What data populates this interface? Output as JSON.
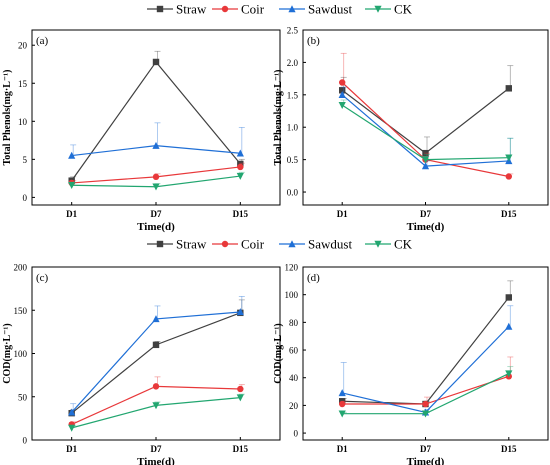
{
  "legends": [
    [
      {
        "name": "Straw",
        "color": "#404040",
        "marker": "square"
      },
      {
        "name": "Coir",
        "color": "#e8383a",
        "marker": "circle"
      },
      {
        "name": "Sawdust",
        "color": "#1f6fd6",
        "marker": "triangle-up"
      },
      {
        "name": "CK",
        "color": "#22a670",
        "marker": "triangle-down"
      }
    ],
    [
      {
        "name": "Straw",
        "color": "#404040",
        "marker": "square"
      },
      {
        "name": "Coir",
        "color": "#e8383a",
        "marker": "circle"
      },
      {
        "name": "Sawdust",
        "color": "#1f6fd6",
        "marker": "triangle-up"
      },
      {
        "name": "CK",
        "color": "#22a670",
        "marker": "triangle-down"
      }
    ]
  ],
  "chart_data": [
    {
      "type": "line",
      "panel_label": "(a)",
      "categories": [
        "D1",
        "D7",
        "D15"
      ],
      "xlabel": "Time(d)",
      "ylabel": "Total Phenols(mg·L⁻¹)",
      "ylim": [
        -1,
        22
      ],
      "yticks": [
        0,
        5,
        10,
        15,
        20
      ],
      "grid": false,
      "legend": "above",
      "series": [
        {
          "name": "Straw",
          "color": "#404040",
          "marker": "square",
          "values": [
            2.2,
            17.8,
            4.4
          ],
          "errors": [
            0.5,
            1.4,
            0.6
          ]
        },
        {
          "name": "Coir",
          "color": "#e8383a",
          "marker": "circle",
          "values": [
            1.9,
            2.7,
            4.0
          ],
          "errors": [
            0.3,
            0.4,
            0.5
          ]
        },
        {
          "name": "Sawdust",
          "color": "#1f6fd6",
          "marker": "triangle-up",
          "values": [
            5.5,
            6.8,
            5.8
          ],
          "errors": [
            1.4,
            3.0,
            3.4
          ]
        },
        {
          "name": "CK",
          "color": "#22a670",
          "marker": "triangle-down",
          "values": [
            1.6,
            1.4,
            2.8
          ],
          "errors": [
            0.4,
            0.4,
            0.5
          ]
        }
      ]
    },
    {
      "type": "line",
      "panel_label": "(b)",
      "categories": [
        "D1",
        "D7",
        "D15"
      ],
      "xlabel": "Time(d)",
      "ylabel": "Total Phenols(mg·L⁻¹)",
      "ylim": [
        -0.2,
        2.5
      ],
      "yticks": [
        0.0,
        0.5,
        1.0,
        1.5,
        2.0,
        2.5
      ],
      "grid": false,
      "legend": "none",
      "series": [
        {
          "name": "Straw",
          "color": "#404040",
          "marker": "square",
          "values": [
            1.57,
            0.6,
            1.6
          ],
          "errors": [
            0.2,
            0.25,
            0.35
          ]
        },
        {
          "name": "Coir",
          "color": "#e8383a",
          "marker": "circle",
          "values": [
            1.69,
            0.5,
            0.24
          ],
          "errors": [
            0.45,
            0.1,
            0.04
          ]
        },
        {
          "name": "Sawdust",
          "color": "#1f6fd6",
          "marker": "triangle-up",
          "values": [
            1.5,
            0.4,
            0.48
          ],
          "errors": [
            0.12,
            0.08,
            0.35
          ]
        },
        {
          "name": "CK",
          "color": "#22a670",
          "marker": "triangle-down",
          "values": [
            1.34,
            0.5,
            0.53
          ],
          "errors": [
            0.08,
            0.08,
            0.3
          ]
        }
      ]
    },
    {
      "type": "line",
      "panel_label": "(c)",
      "categories": [
        "D1",
        "D7",
        "D15"
      ],
      "xlabel": "Time(d)",
      "ylabel": "COD(mg·L⁻¹)",
      "ylim": [
        0,
        200
      ],
      "yticks": [
        0,
        50,
        100,
        150,
        200
      ],
      "grid": false,
      "legend": "above",
      "series": [
        {
          "name": "Straw",
          "color": "#404040",
          "marker": "square",
          "values": [
            31,
            110,
            147
          ],
          "errors": [
            4,
            4,
            15
          ]
        },
        {
          "name": "Coir",
          "color": "#e8383a",
          "marker": "circle",
          "values": [
            18,
            62,
            59
          ],
          "errors": [
            3,
            11,
            5
          ]
        },
        {
          "name": "Sawdust",
          "color": "#1f6fd6",
          "marker": "triangle-up",
          "values": [
            32,
            140,
            148
          ],
          "errors": [
            10,
            15,
            18
          ]
        },
        {
          "name": "CK",
          "color": "#22a670",
          "marker": "triangle-down",
          "values": [
            14,
            40,
            49
          ],
          "errors": [
            3,
            4,
            4
          ]
        }
      ]
    },
    {
      "type": "line",
      "panel_label": "(d)",
      "categories": [
        "D1",
        "D7",
        "D15"
      ],
      "xlabel": "Time(d)",
      "ylabel": "COD(mg·L⁻¹)",
      "ylim": [
        -5,
        120
      ],
      "yticks": [
        0,
        20,
        40,
        60,
        80,
        100,
        120
      ],
      "grid": false,
      "legend": "none",
      "series": [
        {
          "name": "Straw",
          "color": "#404040",
          "marker": "square",
          "values": [
            23,
            21,
            98
          ],
          "errors": [
            2,
            2,
            12
          ]
        },
        {
          "name": "Coir",
          "color": "#e8383a",
          "marker": "circle",
          "values": [
            21,
            21,
            41
          ],
          "errors": [
            2,
            5,
            14
          ]
        },
        {
          "name": "Sawdust",
          "color": "#1f6fd6",
          "marker": "triangle-up",
          "values": [
            29,
            15,
            77
          ],
          "errors": [
            22,
            2,
            15
          ]
        },
        {
          "name": "CK",
          "color": "#22a670",
          "marker": "triangle-down",
          "values": [
            14,
            14,
            43
          ],
          "errors": [
            1,
            1,
            5
          ]
        }
      ]
    }
  ]
}
